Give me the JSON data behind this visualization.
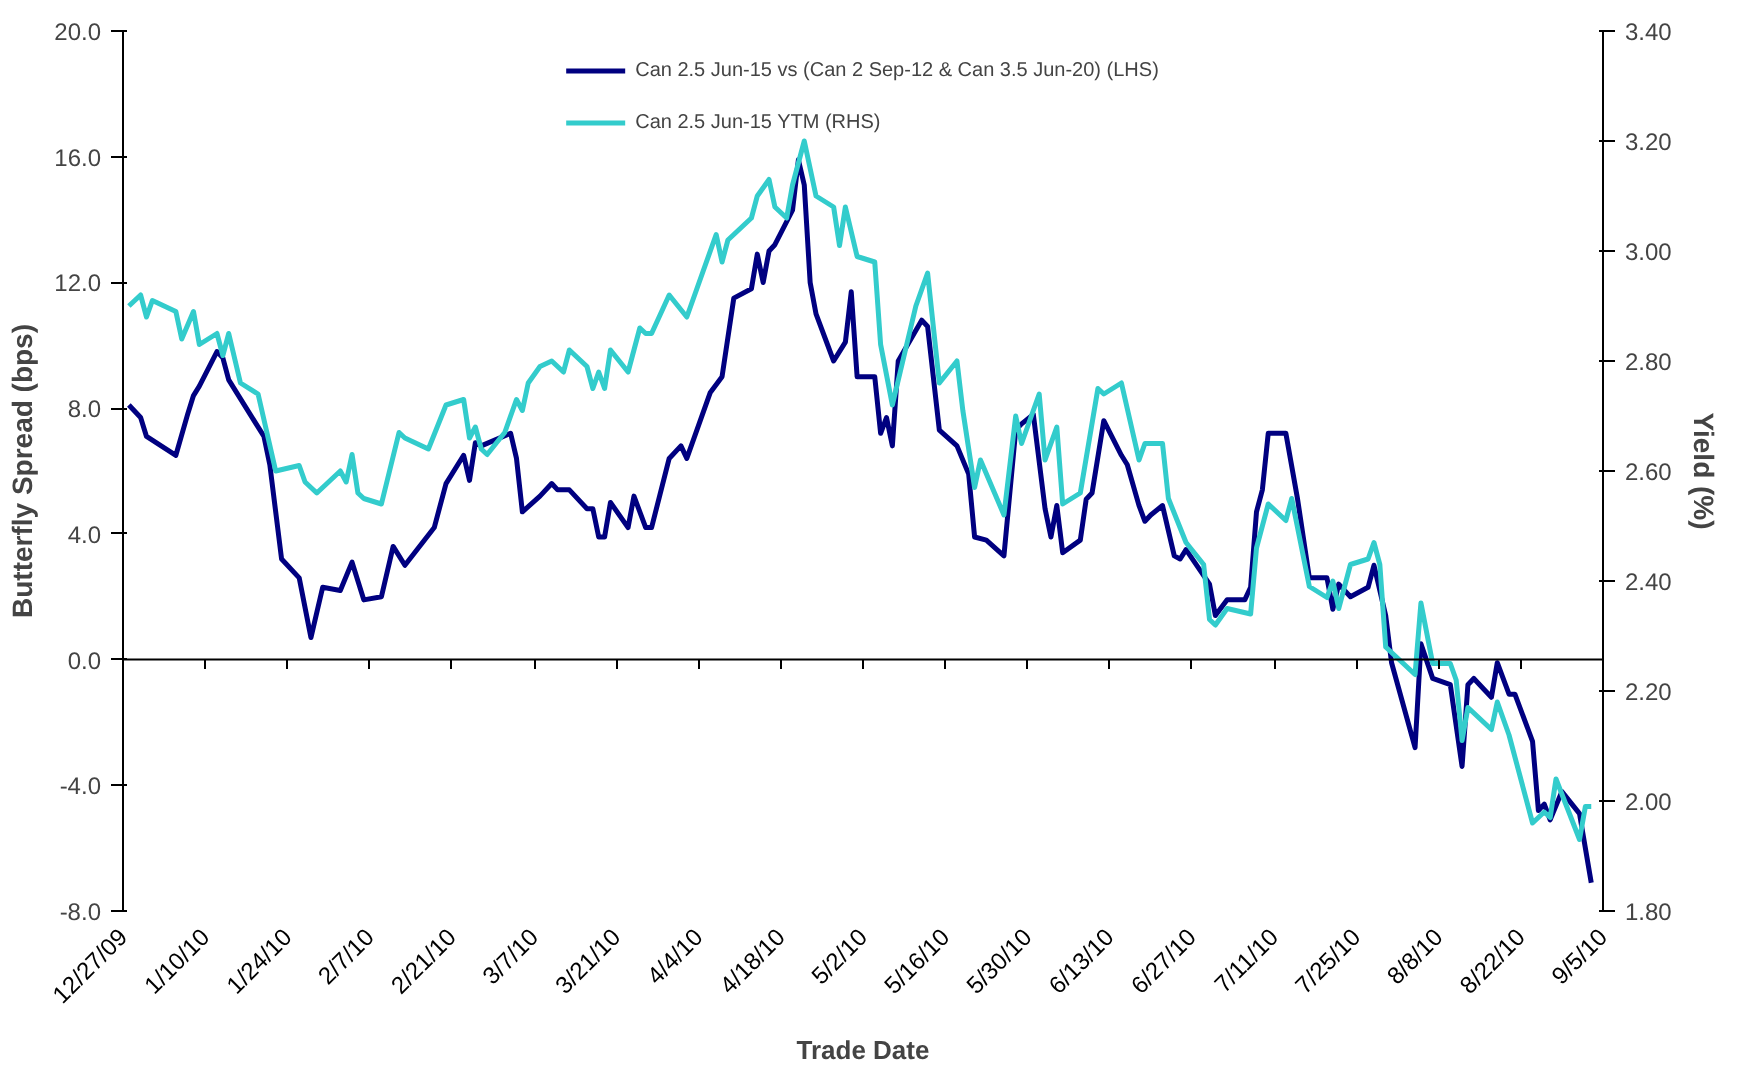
{
  "chart_data": {
    "type": "line",
    "xlabel": "Trade Date",
    "ylabel": "Butterfly Spread (bps)",
    "y2label": "Yield (%)",
    "xlim": [
      "2009-12-27",
      "2010-09-05"
    ],
    "xticks": [
      {
        "value": "2009-12-27",
        "label": "12/27/09"
      },
      {
        "value": "2010-01-10",
        "label": "1/10/10"
      },
      {
        "value": "2010-01-24",
        "label": "1/24/10"
      },
      {
        "value": "2010-02-07",
        "label": "2/7/10"
      },
      {
        "value": "2010-02-21",
        "label": "2/21/10"
      },
      {
        "value": "2010-03-07",
        "label": "3/7/10"
      },
      {
        "value": "2010-03-21",
        "label": "3/21/10"
      },
      {
        "value": "2010-04-04",
        "label": "4/4/10"
      },
      {
        "value": "2010-04-18",
        "label": "4/18/10"
      },
      {
        "value": "2010-05-02",
        "label": "5/2/10"
      },
      {
        "value": "2010-05-16",
        "label": "5/16/10"
      },
      {
        "value": "2010-05-30",
        "label": "5/30/10"
      },
      {
        "value": "2010-06-13",
        "label": "6/13/10"
      },
      {
        "value": "2010-06-27",
        "label": "6/27/10"
      },
      {
        "value": "2010-07-11",
        "label": "7/11/10"
      },
      {
        "value": "2010-07-25",
        "label": "7/25/10"
      },
      {
        "value": "2010-08-08",
        "label": "8/8/10"
      },
      {
        "value": "2010-08-22",
        "label": "8/22/10"
      },
      {
        "value": "2010-09-05",
        "label": "9/5/10"
      }
    ],
    "ylim": [
      -8,
      20
    ],
    "yticks": [
      {
        "value": -8,
        "label": "-8.0"
      },
      {
        "value": -4,
        "label": "-4.0"
      },
      {
        "value": 0,
        "label": "0.0"
      },
      {
        "value": 4,
        "label": "4.0"
      },
      {
        "value": 8,
        "label": "8.0"
      },
      {
        "value": 12,
        "label": "12.0"
      },
      {
        "value": 16,
        "label": "16.0"
      },
      {
        "value": 20,
        "label": "20.0"
      }
    ],
    "y2lim": [
      1.8,
      3.4
    ],
    "y2ticks": [
      {
        "value": 1.8,
        "label": "1.80"
      },
      {
        "value": 2.0,
        "label": "2.00"
      },
      {
        "value": 2.2,
        "label": "2.20"
      },
      {
        "value": 2.4,
        "label": "2.40"
      },
      {
        "value": 2.6,
        "label": "2.60"
      },
      {
        "value": 2.8,
        "label": "2.80"
      },
      {
        "value": 3.0,
        "label": "3.00"
      },
      {
        "value": 3.2,
        "label": "3.20"
      },
      {
        "value": 3.4,
        "label": "3.40"
      }
    ],
    "ref_lines": [
      {
        "axis": "y",
        "value": 0,
        "color": "#000000"
      }
    ],
    "grid": false,
    "legend": "top",
    "marker": "none",
    "line_style": "solid",
    "series": [
      {
        "name": "Can 2.5 Jun-15 vs (Can 2 Sep-12 & Can 3.5 Jun-20) (LHS)",
        "color": "#000080",
        "x": [
          "2009-12-28",
          "2009-12-30",
          "2009-12-31",
          "2010-01-05",
          "2010-01-07",
          "2010-01-08",
          "2010-01-09",
          "2010-01-12",
          "2010-01-13",
          "2010-01-14",
          "2010-01-20",
          "2010-01-21",
          "2010-01-23",
          "2010-01-26",
          "2010-01-28",
          "2010-01-30",
          "2010-02-02",
          "2010-02-04",
          "2010-02-06",
          "2010-02-09",
          "2010-02-11",
          "2010-02-13",
          "2010-02-18",
          "2010-02-20",
          "2010-02-23",
          "2010-02-24",
          "2010-02-25",
          "2010-02-26",
          "2010-03-03",
          "2010-03-04",
          "2010-03-05",
          "2010-03-08",
          "2010-03-10",
          "2010-03-11",
          "2010-03-13",
          "2010-03-16",
          "2010-03-17",
          "2010-03-18",
          "2010-03-19",
          "2010-03-20",
          "2010-03-23",
          "2010-03-24",
          "2010-03-26",
          "2010-03-27",
          "2010-03-30",
          "2010-04-01",
          "2010-04-02",
          "2010-04-06",
          "2010-04-08",
          "2010-04-10",
          "2010-04-13",
          "2010-04-14",
          "2010-04-15",
          "2010-04-16",
          "2010-04-17",
          "2010-04-20",
          "2010-04-21",
          "2010-04-22",
          "2010-04-23",
          "2010-04-24",
          "2010-04-27",
          "2010-04-29",
          "2010-04-30",
          "2010-05-01",
          "2010-05-04",
          "2010-05-05",
          "2010-05-06",
          "2010-05-07",
          "2010-05-08",
          "2010-05-12",
          "2010-05-13",
          "2010-05-15",
          "2010-05-18",
          "2010-05-20",
          "2010-05-21",
          "2010-05-23",
          "2010-05-26",
          "2010-05-28",
          "2010-05-29",
          "2010-05-31",
          "2010-06-02",
          "2010-06-03",
          "2010-06-04",
          "2010-06-05",
          "2010-06-08",
          "2010-06-09",
          "2010-06-10",
          "2010-06-12",
          "2010-06-15",
          "2010-06-16",
          "2010-06-18",
          "2010-06-19",
          "2010-06-20",
          "2010-06-22",
          "2010-06-24",
          "2010-06-25",
          "2010-06-26",
          "2010-06-30",
          "2010-07-01",
          "2010-07-03",
          "2010-07-06",
          "2010-07-07",
          "2010-07-08",
          "2010-07-09",
          "2010-07-10",
          "2010-07-13",
          "2010-07-15",
          "2010-07-17",
          "2010-07-20",
          "2010-07-21",
          "2010-07-22",
          "2010-07-24",
          "2010-07-27",
          "2010-07-28",
          "2010-07-30",
          "2010-07-31",
          "2010-08-04",
          "2010-08-05",
          "2010-08-07",
          "2010-08-10",
          "2010-08-12",
          "2010-08-13",
          "2010-08-14",
          "2010-08-17",
          "2010-08-18",
          "2010-08-20",
          "2010-08-21",
          "2010-08-24",
          "2010-08-25",
          "2010-08-26",
          "2010-08-27",
          "2010-08-29",
          "2010-09-01",
          "2010-09-03"
        ],
        "values": [
          8.1,
          7.7,
          7.1,
          6.5,
          7.8,
          8.4,
          8.7,
          9.8,
          9.6,
          8.9,
          7.1,
          6.2,
          3.2,
          2.6,
          0.7,
          2.3,
          2.2,
          3.1,
          1.9,
          2.0,
          3.6,
          3.0,
          4.2,
          5.6,
          6.5,
          5.7,
          6.9,
          6.8,
          7.2,
          6.4,
          4.7,
          5.2,
          5.6,
          5.4,
          5.4,
          4.8,
          4.8,
          3.9,
          3.9,
          5.0,
          4.2,
          5.2,
          4.2,
          4.2,
          6.4,
          6.8,
          6.4,
          8.5,
          9.0,
          11.5,
          11.8,
          12.9,
          12.0,
          13.0,
          13.2,
          14.3,
          15.9,
          15.1,
          12.0,
          11.0,
          9.5,
          10.1,
          11.7,
          9.0,
          9.0,
          7.2,
          7.7,
          6.8,
          9.5,
          10.8,
          10.6,
          7.3,
          6.8,
          5.9,
          3.9,
          3.8,
          3.3,
          7.3,
          7.5,
          7.8,
          4.8,
          3.9,
          4.9,
          3.4,
          3.8,
          5.1,
          5.3,
          7.6,
          6.5,
          6.2,
          4.9,
          4.4,
          4.6,
          4.9,
          3.3,
          3.2,
          3.5,
          2.4,
          1.4,
          1.9,
          1.9,
          2.3,
          4.7,
          5.4,
          7.2,
          7.2,
          5.1,
          2.6,
          2.6,
          1.6,
          2.4,
          2.0,
          2.3,
          3.0,
          1.4,
          -0.1,
          -2.8,
          0.5,
          -0.6,
          -0.8,
          -3.4,
          -0.8,
          -0.6,
          -1.2,
          -0.1,
          -1.1,
          -1.1,
          -2.6,
          -4.8,
          -4.6,
          -5.1,
          -4.2,
          -4.9,
          -7.1
        ]
      },
      {
        "name": "Can 2.5 Jun-15 YTM (RHS)",
        "color": "#33cccc",
        "axis": "y2",
        "x": [
          "2009-12-28",
          "2009-12-30",
          "2009-12-31",
          "2010-01-01",
          "2010-01-05",
          "2010-01-06",
          "2010-01-08",
          "2010-01-09",
          "2010-01-12",
          "2010-01-13",
          "2010-01-14",
          "2010-01-16",
          "2010-01-19",
          "2010-01-22",
          "2010-01-26",
          "2010-01-27",
          "2010-01-29",
          "2010-02-02",
          "2010-02-03",
          "2010-02-04",
          "2010-02-05",
          "2010-02-06",
          "2010-02-09",
          "2010-02-12",
          "2010-02-13",
          "2010-02-17",
          "2010-02-20",
          "2010-02-23",
          "2010-02-24",
          "2010-02-25",
          "2010-02-26",
          "2010-02-27",
          "2010-03-02",
          "2010-03-04",
          "2010-03-05",
          "2010-03-06",
          "2010-03-08",
          "2010-03-10",
          "2010-03-12",
          "2010-03-13",
          "2010-03-16",
          "2010-03-17",
          "2010-03-18",
          "2010-03-19",
          "2010-03-20",
          "2010-03-23",
          "2010-03-25",
          "2010-03-26",
          "2010-03-27",
          "2010-03-30",
          "2010-04-02",
          "2010-04-07",
          "2010-04-08",
          "2010-04-09",
          "2010-04-13",
          "2010-04-14",
          "2010-04-16",
          "2010-04-17",
          "2010-04-19",
          "2010-04-20",
          "2010-04-22",
          "2010-04-24",
          "2010-04-27",
          "2010-04-28",
          "2010-04-29",
          "2010-05-01",
          "2010-05-04",
          "2010-05-05",
          "2010-05-07",
          "2010-05-11",
          "2010-05-13",
          "2010-05-15",
          "2010-05-18",
          "2010-05-19",
          "2010-05-21",
          "2010-05-22",
          "2010-05-26",
          "2010-05-28",
          "2010-05-29",
          "2010-06-01",
          "2010-06-02",
          "2010-06-04",
          "2010-06-05",
          "2010-06-08",
          "2010-06-11",
          "2010-06-12",
          "2010-06-15",
          "2010-06-18",
          "2010-06-19",
          "2010-06-22",
          "2010-06-23",
          "2010-06-26",
          "2010-06-29",
          "2010-06-30",
          "2010-07-01",
          "2010-07-03",
          "2010-07-07",
          "2010-07-08",
          "2010-07-10",
          "2010-07-13",
          "2010-07-14",
          "2010-07-17",
          "2010-07-20",
          "2010-07-21",
          "2010-07-22",
          "2010-07-24",
          "2010-07-27",
          "2010-07-28",
          "2010-07-29",
          "2010-07-30",
          "2010-08-04",
          "2010-08-05",
          "2010-08-07",
          "2010-08-10",
          "2010-08-11",
          "2010-08-12",
          "2010-08-13",
          "2010-08-17",
          "2010-08-18",
          "2010-08-20",
          "2010-08-24",
          "2010-08-26",
          "2010-08-27",
          "2010-08-28",
          "2010-09-01",
          "2010-09-02",
          "2010-09-03"
        ],
        "values": [
          2.9,
          2.92,
          2.88,
          2.91,
          2.89,
          2.84,
          2.89,
          2.83,
          2.85,
          2.81,
          2.85,
          2.76,
          2.74,
          2.6,
          2.61,
          2.58,
          2.56,
          2.6,
          2.58,
          2.63,
          2.56,
          2.55,
          2.54,
          2.67,
          2.66,
          2.64,
          2.72,
          2.73,
          2.66,
          2.68,
          2.64,
          2.63,
          2.67,
          2.73,
          2.71,
          2.76,
          2.79,
          2.8,
          2.78,
          2.82,
          2.79,
          2.75,
          2.78,
          2.75,
          2.82,
          2.78,
          2.86,
          2.85,
          2.85,
          2.92,
          2.88,
          3.03,
          2.98,
          3.02,
          3.06,
          3.1,
          3.13,
          3.08,
          3.06,
          3.12,
          3.2,
          3.1,
          3.08,
          3.01,
          3.08,
          2.99,
          2.98,
          2.83,
          2.72,
          2.9,
          2.96,
          2.76,
          2.8,
          2.71,
          2.57,
          2.62,
          2.52,
          2.7,
          2.65,
          2.74,
          2.62,
          2.68,
          2.54,
          2.56,
          2.75,
          2.74,
          2.76,
          2.62,
          2.65,
          2.65,
          2.55,
          2.47,
          2.43,
          2.33,
          2.32,
          2.35,
          2.34,
          2.46,
          2.54,
          2.51,
          2.55,
          2.39,
          2.37,
          2.4,
          2.35,
          2.43,
          2.44,
          2.47,
          2.43,
          2.28,
          2.23,
          2.36,
          2.25,
          2.25,
          2.22,
          2.11,
          2.17,
          2.13,
          2.18,
          2.12,
          1.96,
          1.98,
          1.97,
          2.04,
          1.93,
          1.99,
          1.99
        ]
      }
    ]
  }
}
